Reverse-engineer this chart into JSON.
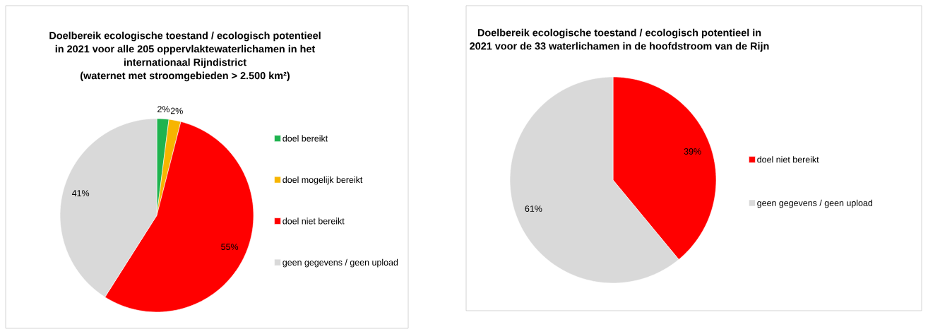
{
  "chart_data": [
    {
      "type": "pie",
      "title": "Doelbereik ecologische toestand / ecologisch potentieel\nin 2021 voor alle 205 oppervlaktewaterlichamen in het\ninternationaal Rijndistrict\n(waternet met stroomgebieden > 2.500 km²)",
      "categories": [
        "doel bereikt",
        "doel mogelijk bereikt",
        "doel niet bereikt",
        "geen gegevens / geen upload"
      ],
      "values": [
        2,
        2,
        55,
        41
      ],
      "colors": [
        "#1fb34f",
        "#f7b500",
        "#ff0000",
        "#d9d9d9"
      ],
      "value_labels": [
        "2%",
        "2%",
        "55%",
        "41%"
      ],
      "legend": "right"
    },
    {
      "type": "pie",
      "title": "Doelbereik ecologische toestand / ecologisch potentieel in\n2021 voor de 33 waterlichamen in de hoofdstroom van de Rijn",
      "categories": [
        "doel niet bereikt",
        "geen gegevens / geen upload"
      ],
      "values": [
        39,
        61
      ],
      "colors": [
        "#ff0000",
        "#d9d9d9"
      ],
      "value_labels": [
        "39%",
        "61%"
      ],
      "legend": "right"
    }
  ]
}
